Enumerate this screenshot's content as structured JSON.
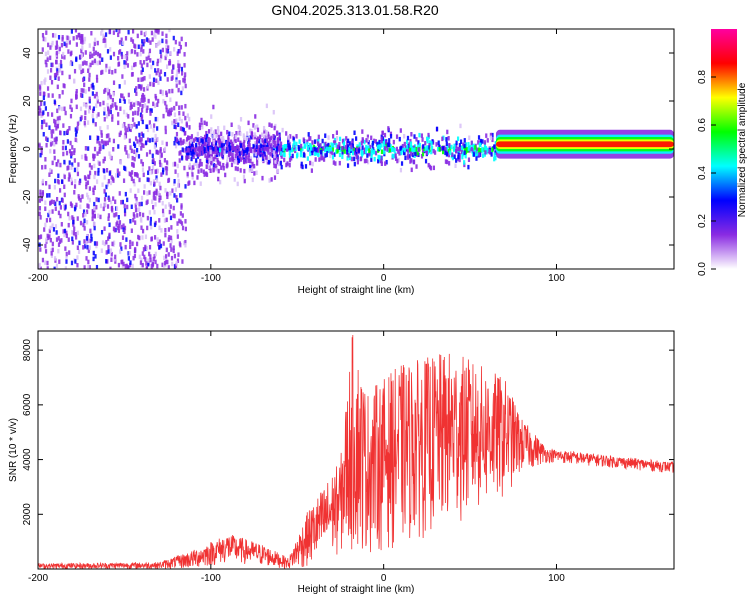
{
  "title": "GN04.2025.313.01.58.R20",
  "chart_data": [
    {
      "type": "heatmap",
      "xlabel": "Height of straight line (km)",
      "ylabel": "Frequency (Hz)",
      "xlim": [
        -200,
        168
      ],
      "ylim": [
        -50,
        50
      ],
      "xticks": [
        "-200",
        "-100",
        "0",
        "100"
      ],
      "yticks": [
        "-40",
        "-20",
        "0",
        "20",
        "40"
      ],
      "colorbar": {
        "label": "Normalized spectral amplitude",
        "range": [
          0,
          1
        ],
        "ticks": [
          "0.0",
          "0.2",
          "0.4",
          "0.6",
          "0.8"
        ],
        "colors": [
          "#ffffff",
          "#8a2be2",
          "#0000ff",
          "#00ffff",
          "#00ff00",
          "#ffff00",
          "#ff0000",
          "#ff00a0"
        ]
      },
      "regions": [
        {
          "x": [
            -200,
            -115
          ],
          "freq_spread": 50,
          "amplitude": 0.15
        },
        {
          "x": [
            -115,
            -60
          ],
          "freq_spread": 20,
          "amplitude": 0.2
        },
        {
          "x": [
            -60,
            65
          ],
          "freq_spread": 12,
          "amplitude": 0.35
        },
        {
          "x": [
            65,
            168
          ],
          "freq_spread": 3,
          "amplitude": 0.9
        }
      ]
    },
    {
      "type": "line",
      "xlabel": "Height of straight line (km)",
      "ylabel": "SNR (10 * v/v)",
      "xlim": [
        -200,
        168
      ],
      "ylim": [
        0,
        8700
      ],
      "xticks": [
        "-200",
        "-100",
        "0",
        "100"
      ],
      "yticks": [
        "2000",
        "4000",
        "6000",
        "8000"
      ],
      "color": "#f03232",
      "envelope": [
        {
          "x": -200,
          "low": 0,
          "high": 200
        },
        {
          "x": -130,
          "low": 0,
          "high": 250
        },
        {
          "x": -110,
          "low": 0,
          "high": 700
        },
        {
          "x": -90,
          "low": 200,
          "high": 1300
        },
        {
          "x": -70,
          "low": 100,
          "high": 900
        },
        {
          "x": -55,
          "low": 0,
          "high": 400
        },
        {
          "x": -45,
          "low": 0,
          "high": 2000
        },
        {
          "x": -25,
          "low": 500,
          "high": 4000
        },
        {
          "x": -18,
          "low": 500,
          "high": 8700
        },
        {
          "x": -10,
          "low": 500,
          "high": 6500
        },
        {
          "x": 10,
          "low": 800,
          "high": 7500
        },
        {
          "x": 40,
          "low": 1500,
          "high": 8000
        },
        {
          "x": 70,
          "low": 2500,
          "high": 7000
        },
        {
          "x": 80,
          "low": 3500,
          "high": 5500
        },
        {
          "x": 95,
          "low": 3900,
          "high": 4400
        },
        {
          "x": 168,
          "low": 3500,
          "high": 3900
        }
      ]
    }
  ]
}
